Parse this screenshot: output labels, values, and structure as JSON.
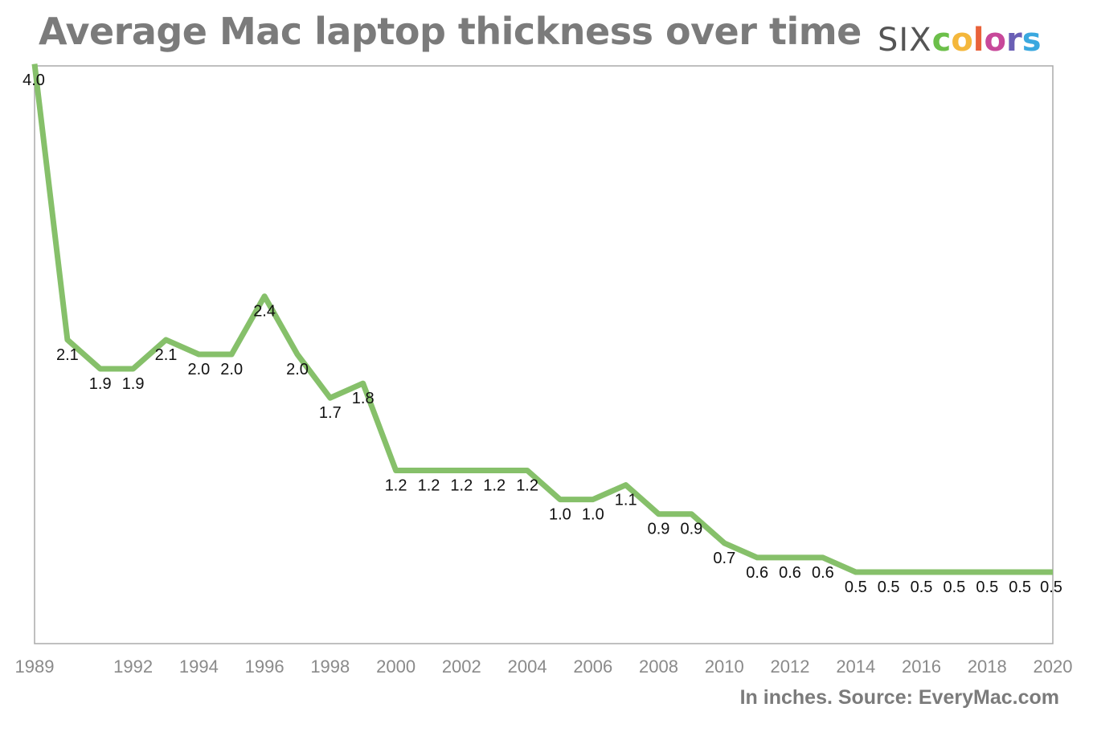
{
  "header": {
    "title": "Average Mac laptop thickness over time",
    "brand_prefix": "SIX",
    "brand_suffix": "colors"
  },
  "footer": {
    "source": "In inches. Source: EveryMac.com"
  },
  "colors": {
    "line": "#86c06a",
    "title": "#7b7b7b",
    "axis": "#aaaaaa"
  },
  "chart_data": {
    "type": "line",
    "title": "Average Mac laptop thickness over time",
    "xlabel": "",
    "ylabel": "",
    "x": [
      1989,
      1990,
      1991,
      1992,
      1993,
      1994,
      1995,
      1996,
      1997,
      1998,
      1999,
      2000,
      2001,
      2002,
      2003,
      2004,
      2005,
      2006,
      2007,
      2008,
      2009,
      2010,
      2011,
      2012,
      2013,
      2014,
      2015,
      2016,
      2017,
      2018,
      2019,
      2020
    ],
    "values": [
      4.0,
      2.1,
      1.9,
      1.9,
      2.1,
      2.0,
      2.0,
      2.4,
      2.0,
      1.7,
      1.8,
      1.2,
      1.2,
      1.2,
      1.2,
      1.2,
      1.0,
      1.0,
      1.1,
      0.9,
      0.9,
      0.7,
      0.6,
      0.6,
      0.6,
      0.5,
      0.5,
      0.5,
      0.5,
      0.5,
      0.5,
      0.5
    ],
    "data_labels": [
      "4.0",
      "2.1",
      "1.9",
      "1.9",
      "2.1",
      "2.0",
      "2.0",
      "2.4",
      "2.0",
      "1.7",
      "1.8",
      "1.2",
      "1.2",
      "1.2",
      "1.2",
      "1.2",
      "1.0",
      "1.0",
      "1.1",
      "0.9",
      "0.9",
      "0.7",
      "0.6",
      "0.6",
      "0.6",
      "0.5",
      "0.5",
      "0.5",
      "0.5",
      "0.5",
      "0.5",
      "0.5"
    ],
    "tick_labels": [
      "1989",
      "1992",
      "1994",
      "1996",
      "1998",
      "2000",
      "2002",
      "2004",
      "2006",
      "2008",
      "2010",
      "2012",
      "2014",
      "2016",
      "2018",
      "2020"
    ],
    "xlim": [
      1989,
      2020
    ],
    "ylim": [
      0.0,
      4.0
    ],
    "grid": false,
    "legend": "none"
  }
}
